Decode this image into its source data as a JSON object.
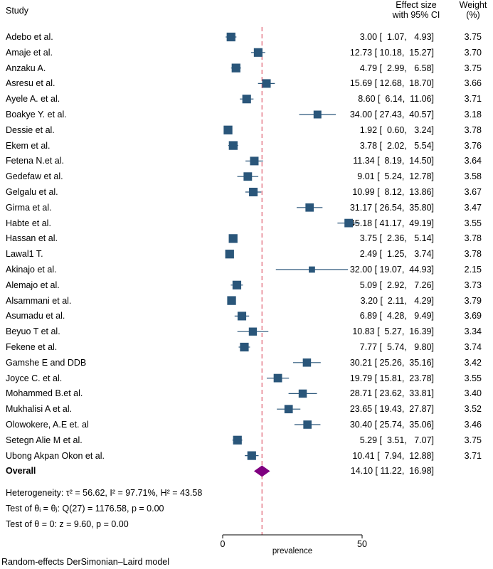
{
  "header": {
    "study": "Study",
    "effect_line1": "Effect size",
    "effect_line2": "with 95% CI",
    "weight_line1": "Weight",
    "weight_line2": "(%)"
  },
  "chart_data": {
    "type": "forest",
    "xlabel": "prevalence",
    "xlim": [
      0,
      50
    ],
    "xticks": [
      0,
      50
    ],
    "reference_line": 14.1,
    "studies": [
      {
        "name": "Adebo et al.",
        "es": "3.00",
        "lo": "1.07",
        "hi": "4.93",
        "w": "3.75"
      },
      {
        "name": "Amaje et al.",
        "es": "12.73",
        "lo": "10.18",
        "hi": "15.27",
        "w": "3.70"
      },
      {
        "name": "Anzaku A.",
        "es": "4.79",
        "lo": "2.99",
        "hi": "6.58",
        "w": "3.75"
      },
      {
        "name": "Asresu et al.",
        "es": "15.69",
        "lo": "12.68",
        "hi": "18.70",
        "w": "3.66"
      },
      {
        "name": "Ayele A. et al.",
        "es": "8.60",
        "lo": "6.14",
        "hi": "11.06",
        "w": "3.71"
      },
      {
        "name": "Boakye Y. et al.",
        "es": "34.00",
        "lo": "27.43",
        "hi": "40.57",
        "w": "3.18"
      },
      {
        "name": "Dessie et al.",
        "es": "1.92",
        "lo": "0.60",
        "hi": "3.24",
        "w": "3.78"
      },
      {
        "name": "Ekem et al.",
        "es": "3.78",
        "lo": "2.02",
        "hi": "5.54",
        "w": "3.76"
      },
      {
        "name": "Fetena N.et al.",
        "es": "11.34",
        "lo": "8.19",
        "hi": "14.50",
        "w": "3.64"
      },
      {
        "name": "Gedefaw et al.",
        "es": "9.01",
        "lo": "5.24",
        "hi": "12.78",
        "w": "3.58"
      },
      {
        "name": "Gelgalu et al.",
        "es": "10.99",
        "lo": "8.12",
        "hi": "13.86",
        "w": "3.67"
      },
      {
        "name": "Girma et al.",
        "es": "31.17",
        "lo": "26.54",
        "hi": "35.80",
        "w": "3.47"
      },
      {
        "name": "Habte et al.",
        "es": "45.18",
        "lo": "41.17",
        "hi": "49.19",
        "w": "3.55"
      },
      {
        "name": "Hassan et al.",
        "es": "3.75",
        "lo": "2.36",
        "hi": "5.14",
        "w": "3.78"
      },
      {
        "name": "Lawal1 T.",
        "es": "2.49",
        "lo": "1.25",
        "hi": "3.74",
        "w": "3.78"
      },
      {
        "name": "Akinajo et al.",
        "es": "32.00",
        "lo": "19.07",
        "hi": "44.93",
        "w": "2.15"
      },
      {
        "name": "Alemajo et al.",
        "es": "5.09",
        "lo": "2.92",
        "hi": "7.26",
        "w": "3.73"
      },
      {
        "name": "Alsammani et al.",
        "es": "3.20",
        "lo": "2.11",
        "hi": "4.29",
        "w": "3.79"
      },
      {
        "name": "Asumadu et al.",
        "es": "6.89",
        "lo": "4.28",
        "hi": "9.49",
        "w": "3.69"
      },
      {
        "name": "Beyuo T et al.",
        "es": "10.83",
        "lo": "5.27",
        "hi": "16.39",
        "w": "3.34"
      },
      {
        "name": "Fekene et al.",
        "es": "7.77",
        "lo": "5.74",
        "hi": "9.80",
        "w": "3.74"
      },
      {
        "name": "Gamshe E and DDB",
        "es": "30.21",
        "lo": "25.26",
        "hi": "35.16",
        "w": "3.42"
      },
      {
        "name": "Joyce C. et al.",
        "es": "19.79",
        "lo": "15.81",
        "hi": "23.78",
        "w": "3.55"
      },
      {
        "name": "Mohammed B.et al.",
        "es": "28.71",
        "lo": "23.62",
        "hi": "33.81",
        "w": "3.40"
      },
      {
        "name": "Mukhalisi A et al.",
        "es": "23.65",
        "lo": "19.43",
        "hi": "27.87",
        "w": "3.52"
      },
      {
        "name": "Olowokere, A.E et. al",
        "es": "30.40",
        "lo": "25.74",
        "hi": "35.06",
        "w": "3.46"
      },
      {
        "name": "Setegn Alie M et al.",
        "es": "5.29",
        "lo": "3.51",
        "hi": "7.07",
        "w": "3.75"
      },
      {
        "name": "Ubong Akpan Okon et al.",
        "es": "10.41",
        "lo": "7.94",
        "hi": "12.88",
        "w": "3.71"
      }
    ],
    "overall": {
      "name": "Overall",
      "es": "14.10",
      "lo": "11.22",
      "hi": "16.98"
    },
    "colors": {
      "marker": "#2a567a",
      "diamond": "#800080",
      "refline": "#e06070"
    }
  },
  "stats": {
    "heterogeneity": "Heterogeneity: τ² = 56.62, I² = 97.71%, H² = 43.58",
    "test_theta_i": "Test of θᵢ = θⱼ: Q(27) = 1176.58, p = 0.00",
    "test_theta_0": "Test of θ = 0: z = 9.60, p = 0.00"
  },
  "footer": "Random-effects DerSimonian–Laird model"
}
